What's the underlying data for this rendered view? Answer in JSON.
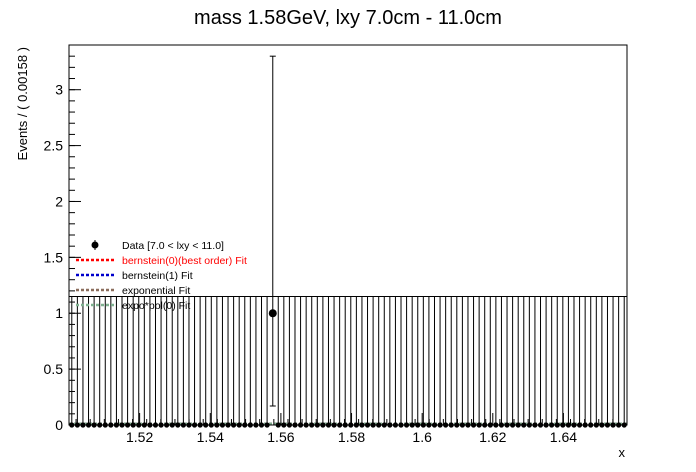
{
  "chart_data": {
    "type": "scatter",
    "title": "mass 1.58GeV, lxy 7.0cm - 11.0cm",
    "xlabel": "x",
    "ylabel": "Events / ( 0.00158 )",
    "xlim": [
      1.5,
      1.658
    ],
    "ylim": [
      0,
      3.4
    ],
    "x_ticks": [
      {
        "value": 1.52,
        "label": "1.52"
      },
      {
        "value": 1.54,
        "label": "1.54"
      },
      {
        "value": 1.56,
        "label": "1.56"
      },
      {
        "value": 1.58,
        "label": "1.58"
      },
      {
        "value": 1.6,
        "label": "1.6"
      },
      {
        "value": 1.62,
        "label": "1.62"
      },
      {
        "value": 1.64,
        "label": "1.64"
      }
    ],
    "y_ticks": [
      {
        "value": 0,
        "label": "0"
      },
      {
        "value": 0.5,
        "label": "0.5"
      },
      {
        "value": 1,
        "label": "1"
      },
      {
        "value": 1.5,
        "label": "1.5"
      },
      {
        "value": 2,
        "label": "2"
      },
      {
        "value": 2.5,
        "label": "2.5"
      },
      {
        "value": 3,
        "label": "3"
      }
    ],
    "bins": {
      "start": 1.5,
      "width": 0.00158,
      "count": 100
    },
    "data_series": {
      "name": "Data [7.0 < lxy < 11.0]",
      "nonzero_points": [
        {
          "x": 1.5577,
          "y": 1,
          "err_low": 0.83,
          "err_high": 2.3
        }
      ],
      "zero_bin_err_high": 1.15
    },
    "fits": [
      {
        "name": "bernstein(0)(best order) Fit",
        "color": "#ff0000",
        "y": 0.01
      },
      {
        "name": "bernstein(1) Fit",
        "color": "#0000cc",
        "y": 0.01
      },
      {
        "name": "exponential Fit",
        "color": "#8b6d5c",
        "y": 0.01
      },
      {
        "name": "expo*pol(0) Fit",
        "color": "#7fb08f",
        "y": 0.01
      }
    ],
    "legend_placement": "middle-left",
    "grid": false
  },
  "colors": {
    "data": "#000000",
    "axis": "#000000"
  }
}
